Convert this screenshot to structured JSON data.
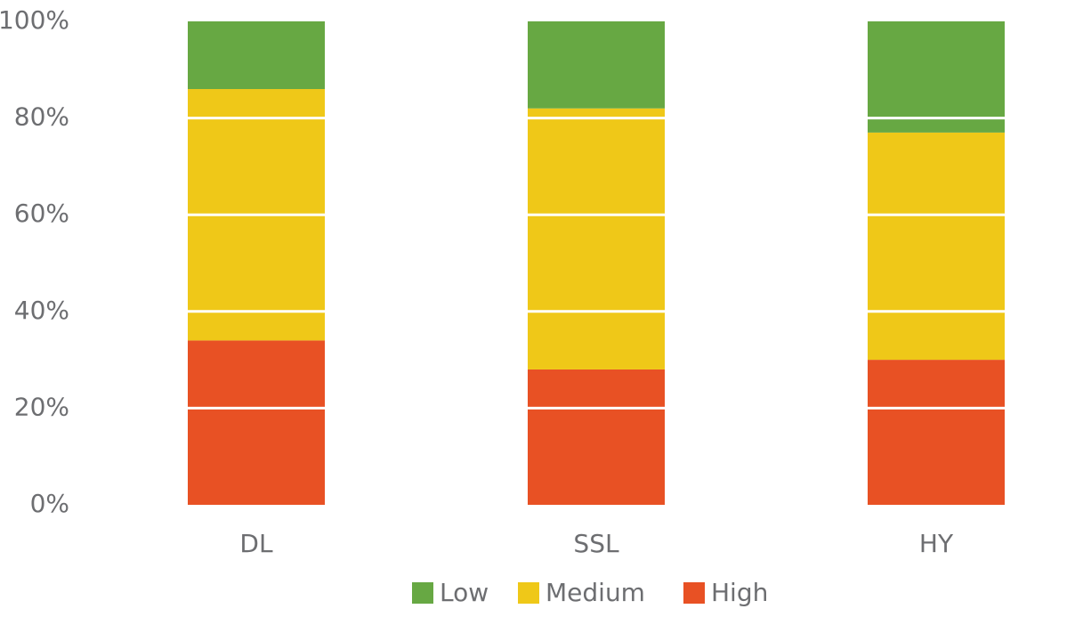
{
  "chart_data": {
    "type": "stacked_bar",
    "categories": [
      "DL",
      "SSL",
      "HY"
    ],
    "series": [
      {
        "name": "Low",
        "color": "#67a843",
        "values": [
          14,
          18,
          23
        ]
      },
      {
        "name": "Medium",
        "color": "#efc818",
        "values": [
          52,
          54,
          47
        ]
      },
      {
        "name": "High",
        "color": "#e85124",
        "values": [
          34,
          28,
          30
        ]
      }
    ],
    "ylim": [
      0,
      100
    ],
    "yticks": [
      {
        "value": 0,
        "label": "0%"
      },
      {
        "value": 20,
        "label": "20%"
      },
      {
        "value": 40,
        "label": "40%"
      },
      {
        "value": 60,
        "label": "60%"
      },
      {
        "value": 80,
        "label": "80%"
      },
      {
        "value": 100,
        "label": "100%"
      }
    ],
    "grid": true,
    "legend": "bottom"
  }
}
